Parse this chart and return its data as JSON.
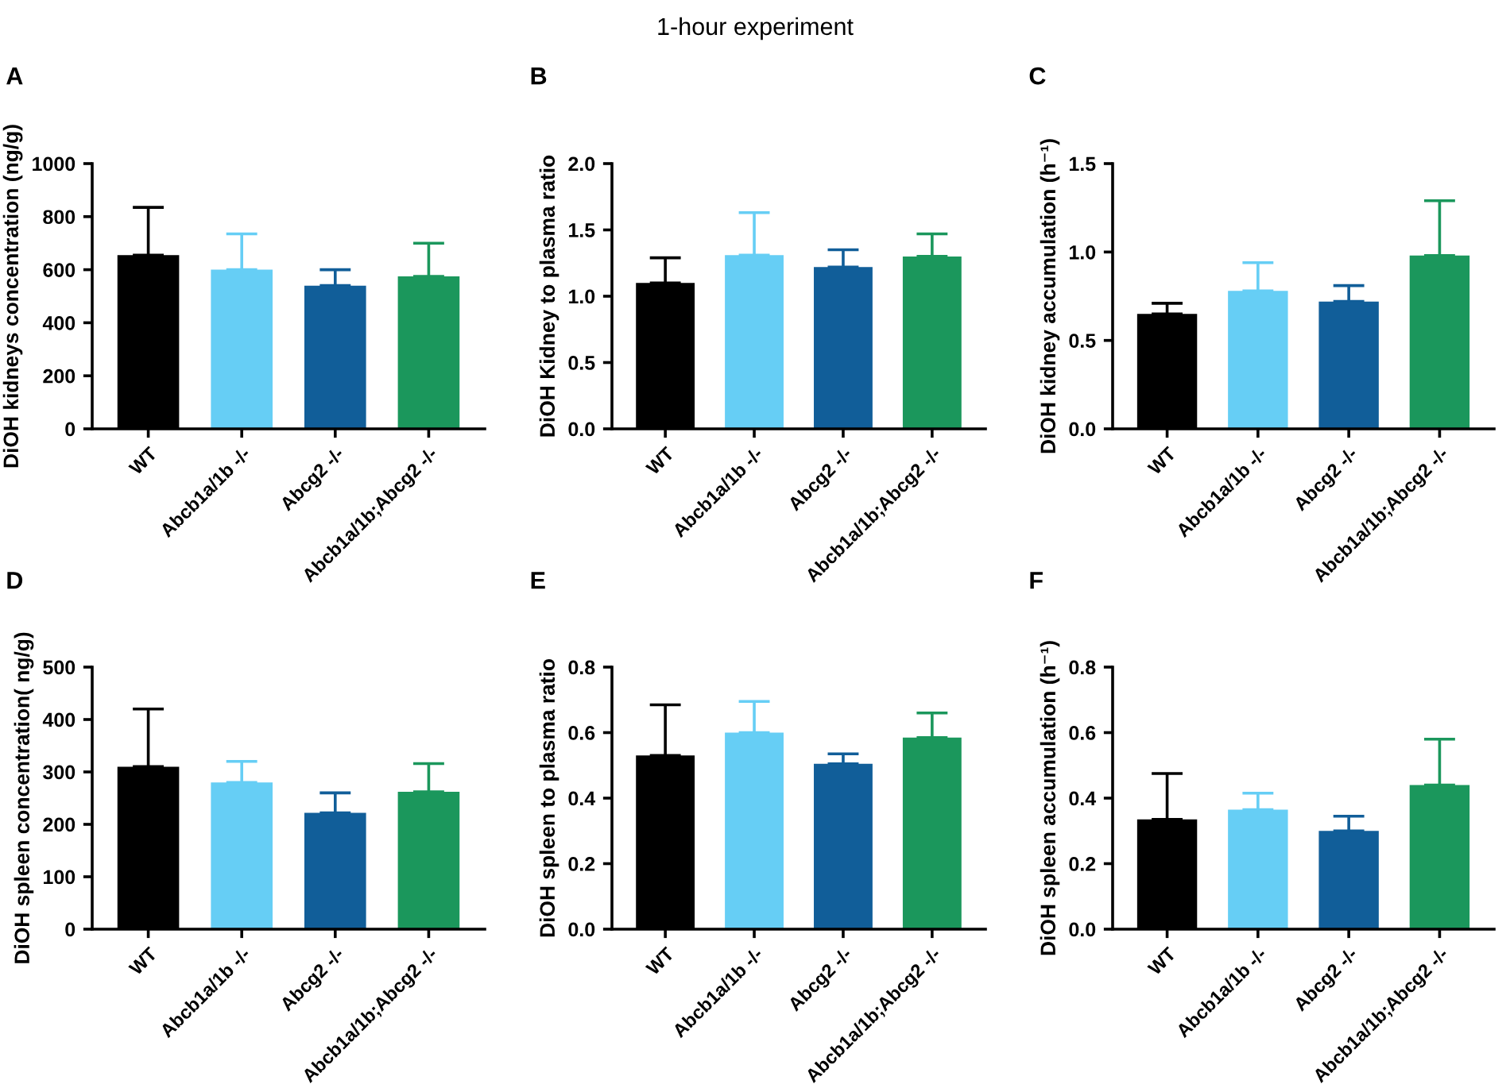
{
  "chart_data": [
    {
      "type": "bar",
      "title": "A",
      "annotations": [
        "1-hour experiment"
      ],
      "ylabel": "DiOH kidneys concentration (ng/g)",
      "categories": [
        "WT",
        "Abcb1a/1b -/-",
        "Abcg2 -/-",
        "Abcb1a/1b;Abcg2 -/-"
      ],
      "values": [
        655,
        600,
        540,
        575
      ],
      "errors": [
        [
          655,
          835
        ],
        [
          600,
          735
        ],
        [
          540,
          600
        ],
        [
          575,
          700
        ]
      ],
      "colors": [
        "#000000",
        "#66cef5",
        "#115e99",
        "#1b975c"
      ],
      "ylim": [
        0,
        1000
      ],
      "yticks": [
        0,
        200,
        400,
        600,
        800,
        1000
      ],
      "grid": false
    },
    {
      "type": "bar",
      "title": "B",
      "ylabel": "DiOH Kidney to plasma ratio",
      "categories": [
        "WT",
        "Abcb1a/1b -/-",
        "Abcg2 -/-",
        "Abcb1a/1b;Abcg2 -/-"
      ],
      "values": [
        1.1,
        1.31,
        1.22,
        1.3
      ],
      "errors": [
        [
          1.1,
          1.29
        ],
        [
          1.31,
          1.63
        ],
        [
          1.22,
          1.35
        ],
        [
          1.3,
          1.47
        ]
      ],
      "colors": [
        "#000000",
        "#66cef5",
        "#115e99",
        "#1b975c"
      ],
      "ylim": [
        0,
        2.0
      ],
      "yticks": [
        {
          "value": 0,
          "label": "0.0"
        },
        0.5,
        {
          "value": 1,
          "label": "1.0"
        },
        1.5,
        {
          "value": 2,
          "label": "2.0"
        }
      ],
      "grid": false
    },
    {
      "type": "bar",
      "title": "C",
      "ylabel": "DiOH kidney accumulation (h⁻¹)",
      "categories": [
        "WT",
        "Abcb1a/1b -/-",
        "Abcg2 -/-",
        "Abcb1a/1b;Abcg2 -/-"
      ],
      "values": [
        0.65,
        0.78,
        0.72,
        0.98
      ],
      "errors": [
        [
          0.65,
          0.71
        ],
        [
          0.78,
          0.94
        ],
        [
          0.72,
          0.81
        ],
        [
          0.98,
          1.29
        ]
      ],
      "colors": [
        "#000000",
        "#66cef5",
        "#115e99",
        "#1b975c"
      ],
      "ylim": [
        0,
        1.5
      ],
      "yticks": [
        {
          "value": 0,
          "label": "0.0"
        },
        0.5,
        {
          "value": 1,
          "label": "1.0"
        },
        1.5
      ],
      "grid": false
    },
    {
      "type": "bar",
      "title": "D",
      "ylabel": "DiOH spleen concentration( ng/g)",
      "categories": [
        "WT",
        "Abcb1a/1b -/-",
        "Abcg2 -/-",
        "Abcb1a/1b;Abcg2 -/-"
      ],
      "values": [
        310,
        280,
        222,
        262
      ],
      "errors": [
        [
          310,
          420
        ],
        [
          280,
          320
        ],
        [
          222,
          260
        ],
        [
          262,
          316
        ]
      ],
      "colors": [
        "#000000",
        "#66cef5",
        "#115e99",
        "#1b975c"
      ],
      "ylim": [
        0,
        500
      ],
      "yticks": [
        0,
        100,
        200,
        300,
        400,
        500
      ],
      "grid": false
    },
    {
      "type": "bar",
      "title": "E",
      "ylabel": "DiOH spleen to plasma ratio",
      "categories": [
        "WT",
        "Abcb1a/1b -/-",
        "Abcg2 -/-",
        "Abcb1a/1b;Abcg2 -/-"
      ],
      "values": [
        0.53,
        0.6,
        0.505,
        0.585
      ],
      "errors": [
        [
          0.53,
          0.685
        ],
        [
          0.6,
          0.695
        ],
        [
          0.505,
          0.535
        ],
        [
          0.585,
          0.66
        ]
      ],
      "colors": [
        "#000000",
        "#66cef5",
        "#115e99",
        "#1b975c"
      ],
      "ylim": [
        0,
        0.8
      ],
      "yticks": [
        {
          "value": 0,
          "label": "0.0"
        },
        0.2,
        0.4,
        0.6,
        0.8
      ],
      "grid": false
    },
    {
      "type": "bar",
      "title": "F",
      "ylabel": "DiOH spleen accumulation (h⁻¹)",
      "categories": [
        "WT",
        "Abcb1a/1b -/-",
        "Abcg2 -/-",
        "Abcb1a/1b;Abcg2 -/-"
      ],
      "values": [
        0.335,
        0.365,
        0.3,
        0.44
      ],
      "errors": [
        [
          0.335,
          0.475
        ],
        [
          0.365,
          0.415
        ],
        [
          0.3,
          0.345
        ],
        [
          0.44,
          0.58
        ]
      ],
      "colors": [
        "#000000",
        "#66cef5",
        "#115e99",
        "#1b975c"
      ],
      "ylim": [
        0,
        0.8
      ],
      "yticks": [
        {
          "value": 0,
          "label": "0.0"
        },
        0.2,
        0.4,
        0.6,
        0.8
      ],
      "grid": false
    }
  ]
}
